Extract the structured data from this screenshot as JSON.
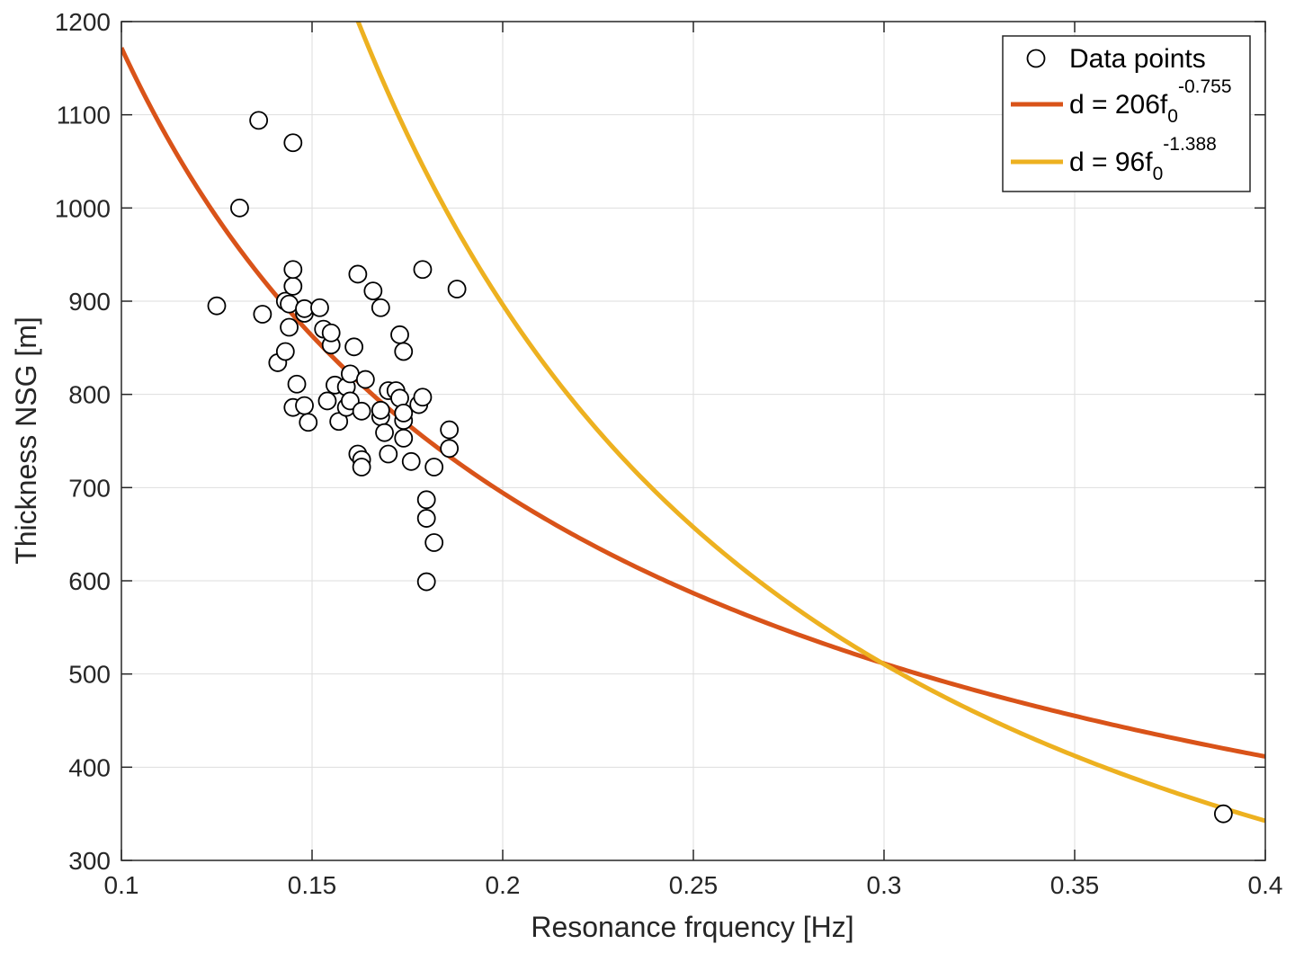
{
  "chart_data": {
    "type": "scatter",
    "title": "",
    "xlabel": "Resonance frquency [Hz]",
    "ylabel": "Thickness NSG [m]",
    "xlim": [
      0.1,
      0.4
    ],
    "ylim": [
      300,
      1200
    ],
    "xticks": [
      0.1,
      0.15,
      0.2,
      0.25,
      0.3,
      0.35,
      0.4
    ],
    "xtick_labels": [
      "0.1",
      "0.15",
      "0.2",
      "0.25",
      "0.3",
      "0.35",
      "0.4"
    ],
    "yticks": [
      300,
      400,
      500,
      600,
      700,
      800,
      900,
      1000,
      1100,
      1200
    ],
    "ytick_labels": [
      "300",
      "400",
      "500",
      "600",
      "700",
      "800",
      "900",
      "1000",
      "1100",
      "1200"
    ],
    "grid": true,
    "legend_position": "top-right",
    "scatter": {
      "name": "Data points",
      "marker": "open-circle",
      "points": [
        [
          0.125,
          895
        ],
        [
          0.131,
          1000
        ],
        [
          0.136,
          1094
        ],
        [
          0.137,
          886
        ],
        [
          0.141,
          834
        ],
        [
          0.143,
          900
        ],
        [
          0.143,
          846
        ],
        [
          0.144,
          872
        ],
        [
          0.144,
          897
        ],
        [
          0.145,
          916
        ],
        [
          0.145,
          934
        ],
        [
          0.145,
          1070
        ],
        [
          0.145,
          786
        ],
        [
          0.146,
          811
        ],
        [
          0.148,
          887
        ],
        [
          0.148,
          892
        ],
        [
          0.148,
          788
        ],
        [
          0.149,
          770
        ],
        [
          0.152,
          893
        ],
        [
          0.153,
          870
        ],
        [
          0.154,
          793
        ],
        [
          0.155,
          853
        ],
        [
          0.155,
          866
        ],
        [
          0.156,
          810
        ],
        [
          0.157,
          771
        ],
        [
          0.159,
          808
        ],
        [
          0.159,
          786
        ],
        [
          0.16,
          793
        ],
        [
          0.161,
          851
        ],
        [
          0.16,
          822
        ],
        [
          0.162,
          929
        ],
        [
          0.162,
          736
        ],
        [
          0.163,
          730
        ],
        [
          0.163,
          722
        ],
        [
          0.163,
          782
        ],
        [
          0.164,
          816
        ],
        [
          0.166,
          911
        ],
        [
          0.168,
          893
        ],
        [
          0.168,
          776
        ],
        [
          0.168,
          783
        ],
        [
          0.169,
          759
        ],
        [
          0.17,
          736
        ],
        [
          0.17,
          804
        ],
        [
          0.172,
          804
        ],
        [
          0.173,
          796
        ],
        [
          0.173,
          864
        ],
        [
          0.174,
          772
        ],
        [
          0.174,
          780
        ],
        [
          0.174,
          753
        ],
        [
          0.174,
          846
        ],
        [
          0.176,
          728
        ],
        [
          0.178,
          789
        ],
        [
          0.179,
          797
        ],
        [
          0.179,
          934
        ],
        [
          0.18,
          687
        ],
        [
          0.18,
          667
        ],
        [
          0.18,
          599
        ],
        [
          0.182,
          722
        ],
        [
          0.182,
          641
        ],
        [
          0.186,
          762
        ],
        [
          0.186,
          742
        ],
        [
          0.188,
          913
        ],
        [
          0.389,
          350
        ]
      ]
    },
    "series": [
      {
        "name": "d = 206f0^-0.755",
        "legend_main": "d = 206f",
        "legend_sub": "0",
        "legend_sup": "-0.755",
        "a": 206,
        "b": -0.755,
        "color": "#D95319"
      },
      {
        "name": "d = 96f0^-1.388",
        "legend_main": "d = 96f",
        "legend_sub": "0",
        "legend_sup": "-1.388",
        "a": 96,
        "b": -1.388,
        "color": "#EDB120"
      }
    ]
  }
}
